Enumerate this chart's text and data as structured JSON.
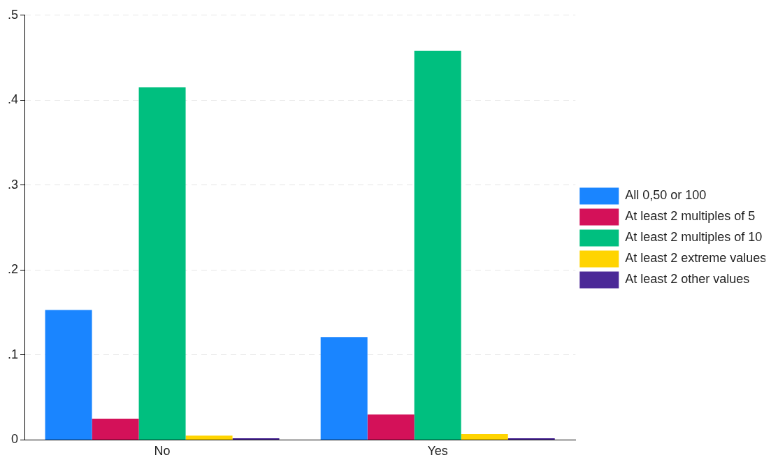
{
  "chart_data": {
    "type": "bar",
    "categories": [
      "No",
      "Yes"
    ],
    "series": [
      {
        "name": "All 0,50 or 100",
        "color": "#1a85ff",
        "values": [
          0.153,
          0.121
        ]
      },
      {
        "name": "At least 2 multiples of 5",
        "color": "#d41159",
        "values": [
          0.025,
          0.03
        ]
      },
      {
        "name": "At least 2 multiples of 10",
        "color": "#00bf7f",
        "values": [
          0.415,
          0.458
        ]
      },
      {
        "name": "At least 2 extreme values",
        "color": "#ffd400",
        "values": [
          0.005,
          0.007
        ]
      },
      {
        "name": "At least 2 other values",
        "color": "#4b2997",
        "values": [
          0.002,
          0.002
        ]
      }
    ],
    "ylim": [
      0,
      0.5
    ],
    "yticks": [
      0,
      {
        "value": 0.1,
        "label": ".1"
      },
      {
        "value": 0.2,
        "label": ".2"
      },
      {
        "value": 0.3,
        "label": ".3"
      },
      {
        "value": 0.4,
        "label": ".4"
      },
      {
        "value": 0.5,
        "label": ".5"
      }
    ],
    "grid": "y",
    "legend": "right"
  }
}
